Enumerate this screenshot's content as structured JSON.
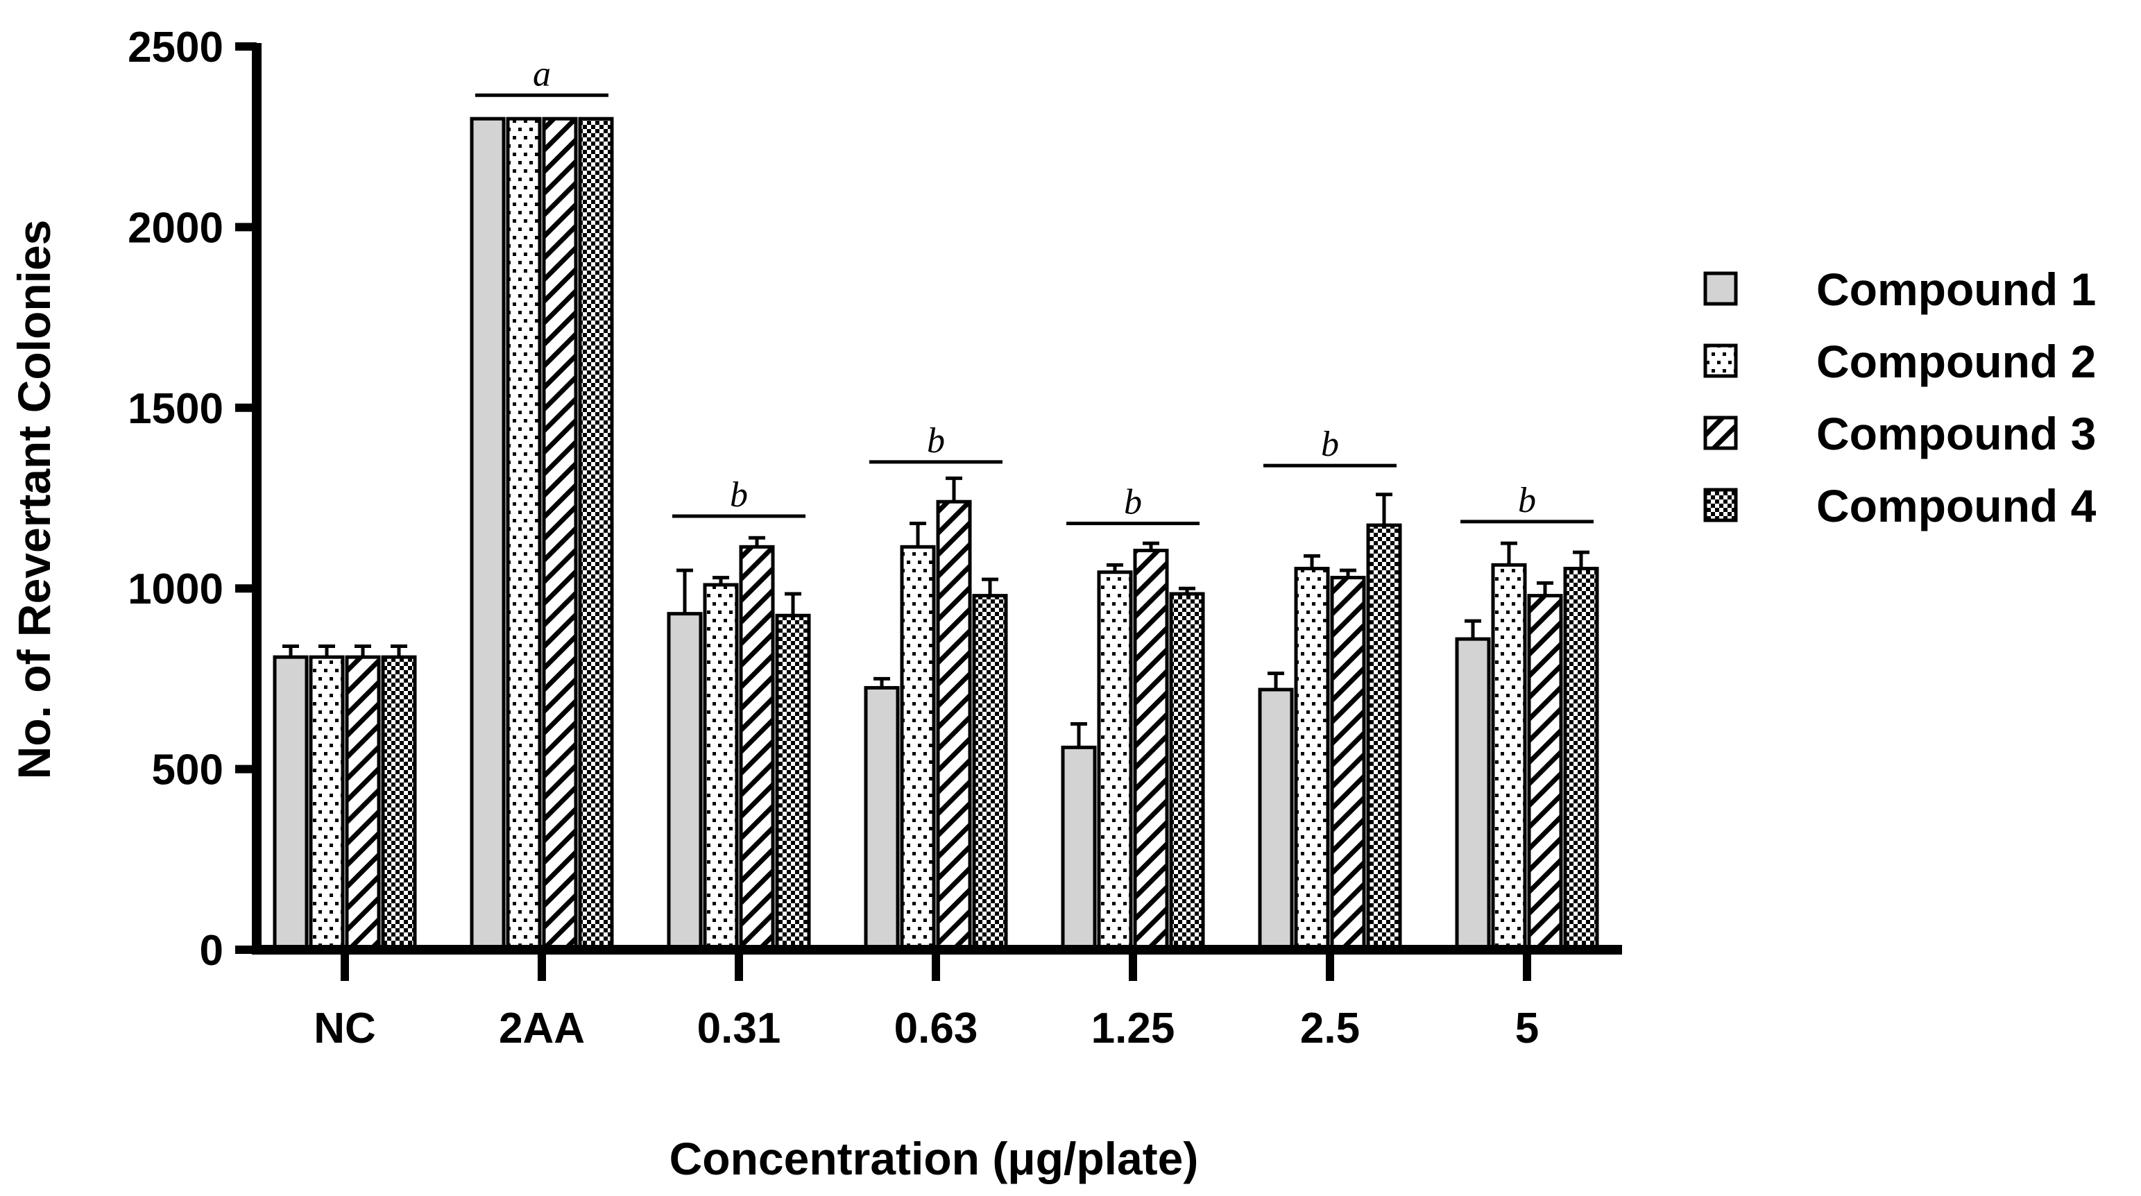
{
  "chart_data": {
    "type": "bar",
    "title": "",
    "xlabel": "Concentration (μg/plate)",
    "ylabel": "No. of Revertant Colonies",
    "ylim": [
      0,
      2500
    ],
    "yticks": [
      0,
      500,
      1000,
      1500,
      2000,
      2500
    ],
    "categories": [
      "NC",
      "2AA",
      "0.31",
      "0.63",
      "1.25",
      "2.5",
      "5"
    ],
    "series": [
      {
        "name": "Compound 1",
        "pattern": "solid-grey",
        "values": [
          810,
          2300,
          930,
          725,
          560,
          720,
          860
        ],
        "errors": [
          30,
          0,
          120,
          25,
          65,
          45,
          50
        ]
      },
      {
        "name": "Compound 2",
        "pattern": "dots",
        "values": [
          810,
          2300,
          1010,
          1115,
          1045,
          1055,
          1065
        ],
        "errors": [
          30,
          0,
          20,
          65,
          20,
          35,
          60
        ]
      },
      {
        "name": "Compound 3",
        "pattern": "diagonal-hatch",
        "values": [
          810,
          2300,
          1115,
          1240,
          1105,
          1030,
          980
        ],
        "errors": [
          30,
          0,
          25,
          65,
          20,
          20,
          35
        ]
      },
      {
        "name": "Compound 4",
        "pattern": "checker",
        "values": [
          810,
          2300,
          925,
          980,
          985,
          1175,
          1055
        ],
        "errors": [
          30,
          0,
          60,
          45,
          15,
          85,
          45
        ]
      }
    ],
    "annotations": [
      {
        "category": "2AA",
        "label": "a",
        "level": 2365
      },
      {
        "category": "0.31",
        "label": "b",
        "level": 1200
      },
      {
        "category": "0.63",
        "label": "b",
        "level": 1350
      },
      {
        "category": "1.25",
        "label": "b",
        "level": 1180
      },
      {
        "category": "2.5",
        "label": "b",
        "level": 1340
      },
      {
        "category": "5",
        "label": "b",
        "level": 1185
      }
    ],
    "legend_position": "right",
    "colors": {
      "bar_fill": "#d3d3d3",
      "pattern_bg": "#ffffff",
      "ink": "#000000"
    }
  }
}
